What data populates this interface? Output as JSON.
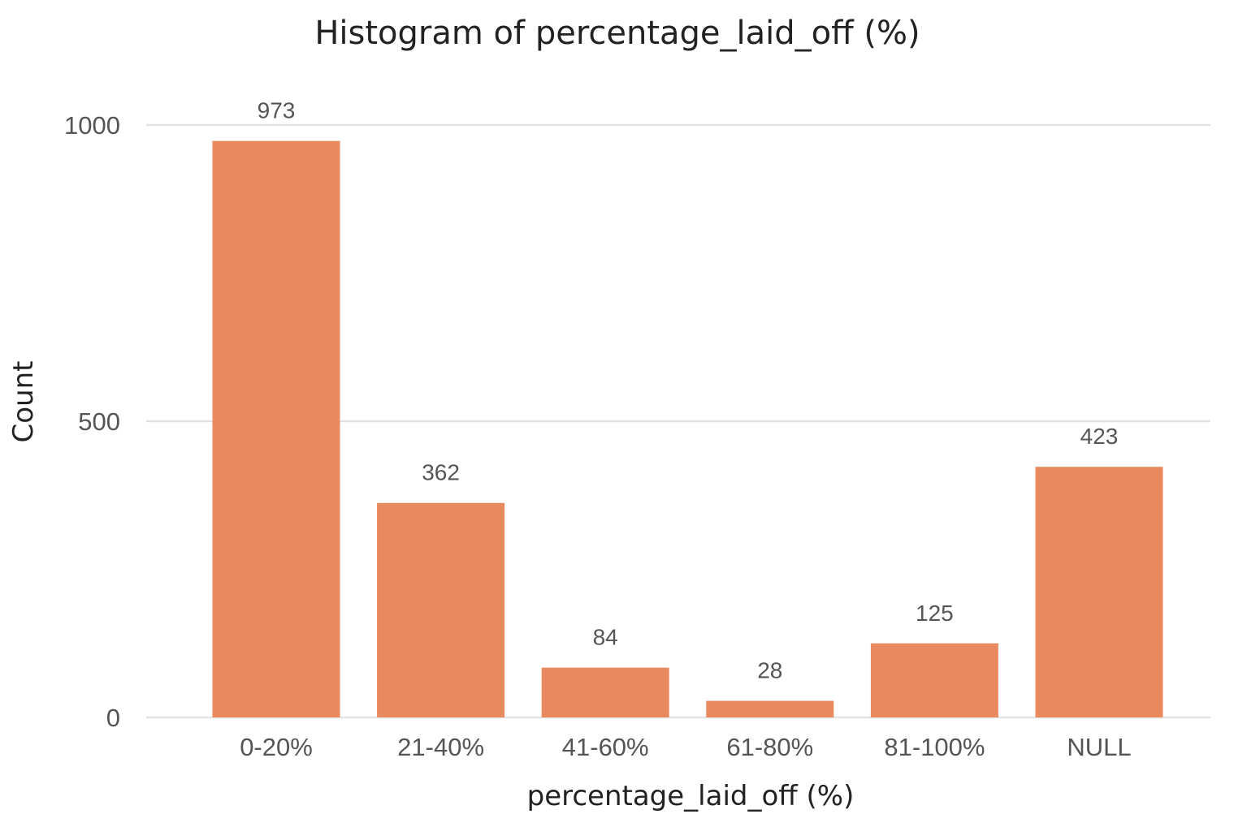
{
  "chart_data": {
    "type": "bar",
    "title": "Histogram of percentage_laid_off (%)",
    "xlabel": "percentage_laid_off (%)",
    "ylabel": "Count",
    "categories": [
      "0-20%",
      "21-40%",
      "41-60%",
      "61-80%",
      "81-100%",
      "NULL"
    ],
    "values": [
      973,
      362,
      84,
      28,
      125,
      423
    ],
    "data_labels": [
      "973",
      "362",
      "84",
      "28",
      "125",
      "423"
    ],
    "yticks": [
      0,
      500,
      1000
    ],
    "ytick_labels": [
      "0",
      "500",
      "1000"
    ],
    "ylim": [
      0,
      1000
    ],
    "grid": "horizontal",
    "legend": "none",
    "bar_color": "#E8895E"
  }
}
